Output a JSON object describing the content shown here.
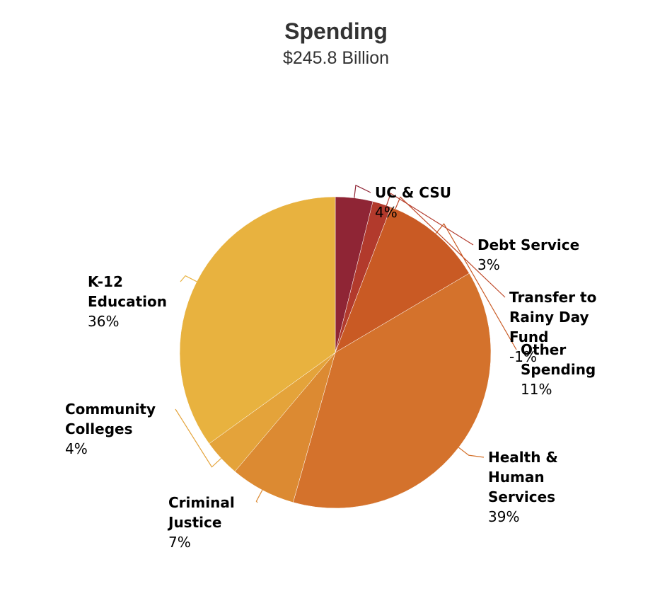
{
  "chart_data": {
    "type": "pie",
    "title": "Spending",
    "subtitle": "$245.8 Billion",
    "categories": [
      "UC & CSU",
      "Debt Service",
      "Transfer to Rainy Day Fund",
      "Other Spending",
      "Health & Human Services",
      "Criminal Justice",
      "Community Colleges",
      "K-12 Education"
    ],
    "values": [
      4,
      3,
      -1,
      11,
      39,
      7,
      4,
      36
    ],
    "value_labels": [
      "4%",
      "3%",
      "-1%",
      "11%",
      "39%",
      "7%",
      "4%",
      "36%"
    ],
    "colors": [
      "#8f2535",
      "#b23a2c",
      "#bf4a2a",
      "#c95a24",
      "#d4722c",
      "#dc8a32",
      "#e4a33a",
      "#e8b23f"
    ]
  }
}
